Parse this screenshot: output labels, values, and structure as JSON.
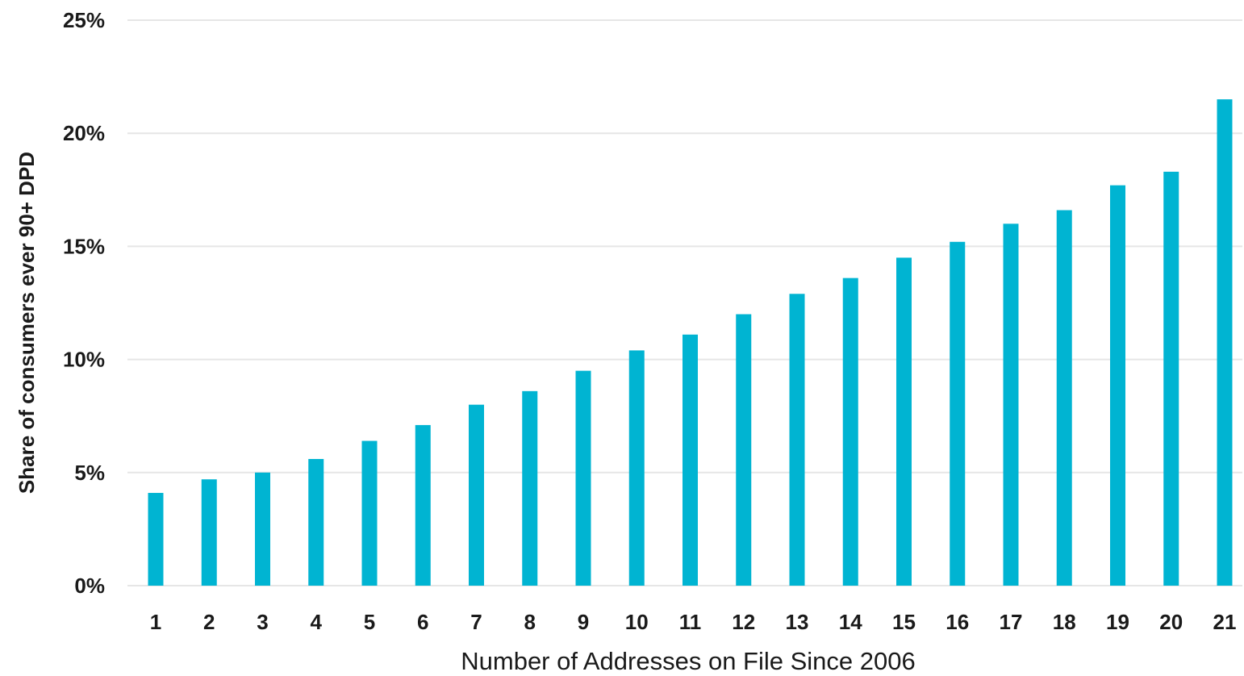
{
  "chart_data": {
    "type": "bar",
    "title": "",
    "xlabel": "Number of Addresses on File Since 2006",
    "ylabel": "Share of consumers ever 90+ DPD",
    "categories": [
      "1",
      "2",
      "3",
      "4",
      "5",
      "6",
      "7",
      "8",
      "9",
      "10",
      "11",
      "12",
      "13",
      "14",
      "15",
      "16",
      "17",
      "18",
      "19",
      "20",
      "21"
    ],
    "values": [
      4.1,
      4.7,
      5.0,
      5.6,
      6.4,
      7.1,
      8.0,
      8.6,
      9.5,
      10.4,
      11.1,
      12.0,
      12.9,
      13.6,
      14.5,
      15.2,
      16.0,
      16.6,
      17.7,
      18.3,
      21.5
    ],
    "ylim": [
      0,
      25
    ],
    "yticks": [
      0,
      5,
      10,
      15,
      20,
      25
    ],
    "ytick_labels": [
      "0%",
      "5%",
      "10%",
      "15%",
      "20%",
      "25%"
    ],
    "grid": true,
    "bar_color": "#00b4d2",
    "grid_color": "#e6e6e6"
  }
}
